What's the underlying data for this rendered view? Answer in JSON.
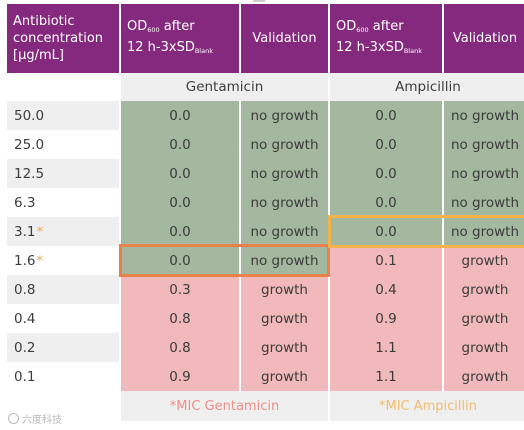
{
  "header": {
    "conc_label": "Antibiotic concentration [µg/mL]",
    "conc_lines": [
      "Antibiotic",
      "concentration",
      "[µg/mL]"
    ],
    "od_prefix": "OD",
    "od_sub": "600",
    "od_after": " after",
    "od_line2": "12 h-3xSD",
    "od_blank": "Blank",
    "validation": "Validation"
  },
  "drugs": [
    "Gentamicin",
    "Ampicillin"
  ],
  "rows": [
    {
      "conc": "50.0",
      "star": "",
      "gent_od": "0.0",
      "gent_val": "no growth",
      "amp_od": "0.0",
      "amp_val": "no growth"
    },
    {
      "conc": "25.0",
      "star": "",
      "gent_od": "0.0",
      "gent_val": "no growth",
      "amp_od": "0.0",
      "amp_val": "no growth"
    },
    {
      "conc": "12.5",
      "star": "",
      "gent_od": "0.0",
      "gent_val": "no growth",
      "amp_od": "0.0",
      "amp_val": "no growth"
    },
    {
      "conc": "6.3",
      "star": "",
      "gent_od": "0.0",
      "gent_val": "no growth",
      "amp_od": "0.0",
      "amp_val": "no growth"
    },
    {
      "conc": "3.1",
      "star": "*",
      "gent_od": "0.0",
      "gent_val": "no growth",
      "amp_od": "0.0",
      "amp_val": "no growth"
    },
    {
      "conc": "1.6",
      "star": "*",
      "gent_od": "0.0",
      "gent_val": "no growth",
      "amp_od": "0.1",
      "amp_val": "growth"
    },
    {
      "conc": "0.8",
      "star": "",
      "gent_od": "0.3",
      "gent_val": "growth",
      "amp_od": "0.4",
      "amp_val": "growth"
    },
    {
      "conc": "0.4",
      "star": "",
      "gent_od": "0.8",
      "gent_val": "growth",
      "amp_od": "0.9",
      "amp_val": "growth"
    },
    {
      "conc": "0.2",
      "star": "",
      "gent_od": "0.8",
      "gent_val": "growth",
      "amp_od": "1.1",
      "amp_val": "growth"
    },
    {
      "conc": "0.1",
      "star": "",
      "gent_od": "0.9",
      "gent_val": "growth",
      "amp_od": "1.1",
      "amp_val": "growth"
    }
  ],
  "footer": {
    "mic_gentamicin": "*MIC Gentamicin",
    "mic_ampicillin": "*MIC Ampicillin"
  },
  "watermark": "六度科技",
  "colors": {
    "header_purple": "#84297e",
    "no_growth_green": "#a3b89e",
    "growth_pink": "#f1b9bb",
    "gentamicin_mic_highlight": "#e9814b",
    "ampicillin_mic_highlight": "#f3b24c"
  },
  "highlights": {
    "gentamicin_mic_conc": "1.6",
    "ampicillin_mic_conc": "3.1"
  }
}
